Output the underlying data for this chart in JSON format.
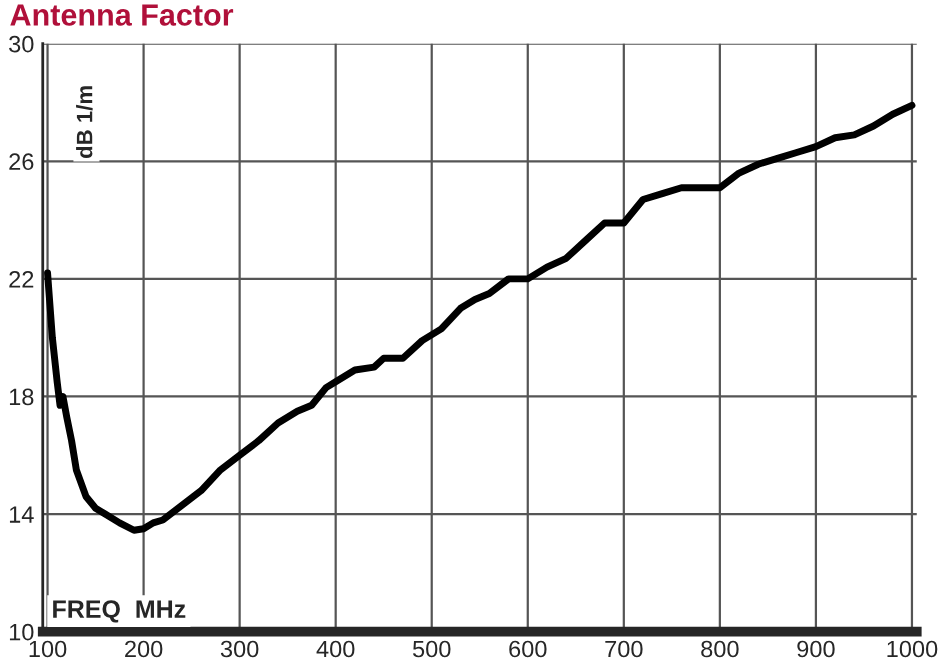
{
  "chart_data": {
    "type": "line",
    "title": "Antenna Factor",
    "xlabel": "FREQ  MHz",
    "ylabel": "dB 1/m",
    "x": [
      100,
      105,
      110,
      113,
      116,
      120,
      125,
      130,
      140,
      150,
      160,
      175,
      190,
      200,
      210,
      220,
      240,
      260,
      280,
      300,
      320,
      340,
      360,
      375,
      390,
      400,
      420,
      440,
      450,
      470,
      490,
      510,
      530,
      545,
      560,
      580,
      600,
      620,
      640,
      660,
      680,
      700,
      720,
      740,
      760,
      780,
      800,
      820,
      840,
      860,
      880,
      900,
      920,
      940,
      960,
      980,
      1000
    ],
    "series": [
      {
        "color": "#000000",
        "values": [
          22.2,
          20.0,
          18.5,
          17.7,
          18.0,
          17.3,
          16.5,
          15.5,
          14.6,
          14.2,
          14.0,
          13.7,
          13.45,
          13.5,
          13.7,
          13.8,
          14.3,
          14.8,
          15.5,
          16.0,
          16.5,
          17.1,
          17.5,
          17.7,
          18.3,
          18.5,
          18.9,
          19.0,
          19.3,
          19.3,
          19.9,
          20.3,
          21.0,
          21.3,
          21.5,
          22.0,
          22.0,
          22.4,
          22.7,
          23.3,
          23.9,
          23.9,
          24.7,
          24.9,
          25.1,
          25.1,
          25.1,
          25.6,
          25.9,
          26.1,
          26.3,
          26.5,
          26.8,
          26.9,
          27.2,
          27.6,
          27.9
        ]
      }
    ],
    "xlim": [
      95,
      1005
    ],
    "ylim": [
      10,
      30
    ],
    "xticks": [
      100,
      200,
      300,
      400,
      500,
      600,
      700,
      800,
      900,
      1000
    ],
    "yticks": [
      10,
      14,
      18,
      22,
      26,
      30
    ],
    "grid": true,
    "line_style": "solid",
    "marker": "none",
    "legend": false
  }
}
